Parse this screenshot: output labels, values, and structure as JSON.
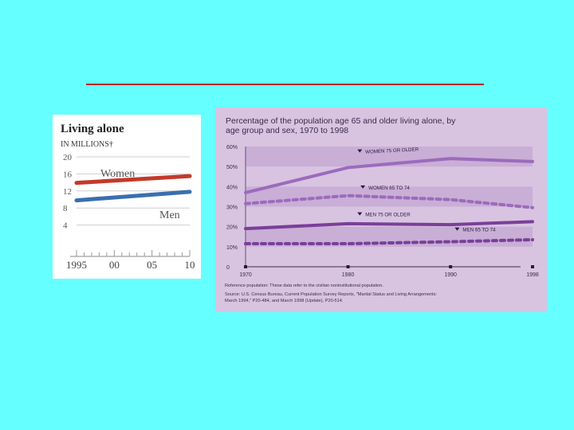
{
  "colors": {
    "background": "#66ffff",
    "title_rule": "#b22a1a",
    "women_left": "#c4392a",
    "men_left": "#3a6fae",
    "purple": "#9b6bbd",
    "purple_dark": "#7a3f9a",
    "band": "#c9aed6",
    "panel_right_bg": "#d8c4e0"
  },
  "chart_data": [
    {
      "type": "line",
      "title": "Living alone",
      "subtitle": "IN MILLIONS†",
      "x": [
        1995,
        2010
      ],
      "xticklabels": [
        "1995",
        "00",
        "05",
        "10"
      ],
      "xtick_values": [
        1995,
        2000,
        2005,
        2010
      ],
      "ylim": [
        0,
        20
      ],
      "yticks": [
        4,
        8,
        12,
        16,
        20
      ],
      "series": [
        {
          "name": "Women",
          "x": [
            1995,
            2010
          ],
          "values": [
            13.9,
            15.5
          ],
          "color": "#c4392a"
        },
        {
          "name": "Men",
          "x": [
            1995,
            2010
          ],
          "values": [
            9.8,
            11.8
          ],
          "color": "#3a6fae"
        }
      ]
    },
    {
      "type": "line",
      "title": "Percentage of the population age 65 and older living alone, by age group and sex, 1970 to 1998",
      "x": [
        1970,
        1980,
        1990,
        1998
      ],
      "xticklabels": [
        "1970",
        "1980",
        "1990",
        "1998"
      ],
      "ylim": [
        0,
        60
      ],
      "yticks": [
        0,
        10,
        20,
        30,
        40,
        50,
        60
      ],
      "yticklabels": [
        "0",
        "10%",
        "20%",
        "30%",
        "40%",
        "50%",
        "60%"
      ],
      "series": [
        {
          "name": "WOMEN 75 OR OLDER",
          "values": [
            37.0,
            49.5,
            54.0,
            52.5
          ],
          "style": "solid",
          "shade": "light"
        },
        {
          "name": "WOMEN 65 TO 74",
          "values": [
            31.5,
            35.5,
            33.5,
            29.5
          ],
          "style": "dashed",
          "shade": "light"
        },
        {
          "name": "MEN 75 OR OLDER",
          "values": [
            19.0,
            21.5,
            21.0,
            22.5
          ],
          "style": "solid",
          "shade": "dark"
        },
        {
          "name": "MEN 65 TO 74",
          "values": [
            11.5,
            11.5,
            12.5,
            13.5
          ],
          "style": "dashed",
          "shade": "dark"
        }
      ],
      "footnotes": [
        "Reference population: These data refer to the civilian noninstitutional population.",
        "Source: U.S. Census Bureau, Current Population Survey Reports, \"Marital Status and Living Arrangements:",
        "March 1994,\" P20-484, and March 1998 (Update), P20-514."
      ]
    }
  ]
}
